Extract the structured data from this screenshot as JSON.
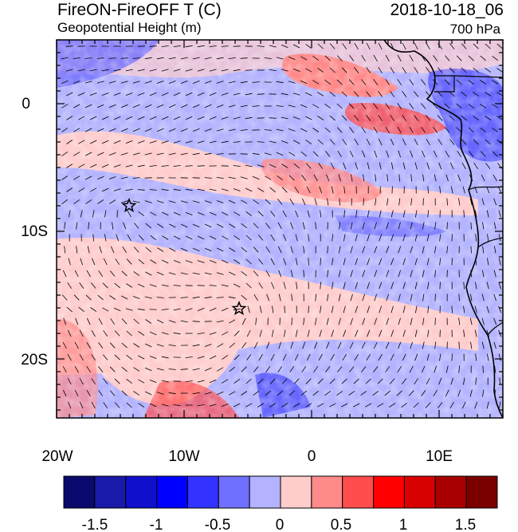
{
  "title_left": "FireON-FireOFF T (C)",
  "title_right": "2018-10-18_06",
  "subtitle_left": "Geopotential Height (m)",
  "subtitle_right": "700 hPa",
  "map": {
    "lon_ticks": [
      "20W",
      "10W",
      "0",
      "10E"
    ],
    "lat_ticks": [
      "0",
      "10S",
      "20S"
    ],
    "markers": [
      {
        "name": "star-marker-1",
        "lon": "14.2W",
        "lat": "8S"
      },
      {
        "name": "star-marker-2",
        "lon": "5.7W",
        "lat": "16S"
      }
    ]
  },
  "colorbar": {
    "colors": [
      "#0a0a6e",
      "#1a1aa8",
      "#1010cc",
      "#0000ff",
      "#3333ff",
      "#7070ff",
      "#b3b3ff",
      "#ffcccc",
      "#ff8a8a",
      "#ff4d4d",
      "#ff0000",
      "#d80000",
      "#a80000",
      "#7a0000"
    ],
    "labels": [
      "-1.5",
      "-1",
      "-0.5",
      "0",
      "0.5",
      "1",
      "1.5"
    ]
  }
}
